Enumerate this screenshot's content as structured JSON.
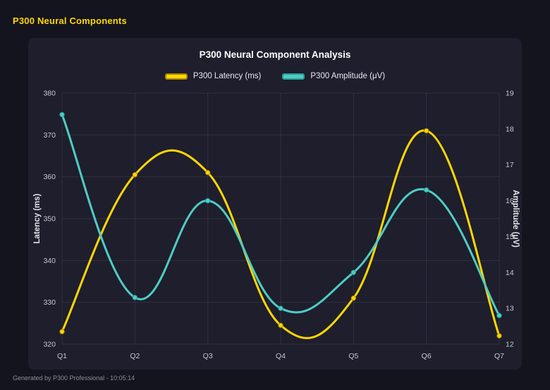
{
  "page": {
    "header_title": "P300 Neural Components",
    "footer": "Generated by P300 Professional - 10:05:14"
  },
  "colors": {
    "page_bg": "#14141f",
    "card_bg": "#1e1e2d",
    "header_accent": "#ffd700",
    "grid": "rgba(255,255,255,0.08)",
    "tick_text": "#c9c9d2",
    "axis_title_text": "#e2e2e8"
  },
  "chart_data": {
    "type": "line",
    "title": "P300 Neural Component Analysis",
    "categories": [
      "Q1",
      "Q2",
      "Q3",
      "Q4",
      "Q5",
      "Q6",
      "Q7"
    ],
    "series": [
      {
        "name": "P300 Latency (ms)",
        "axis": "left",
        "color": "#ffd700",
        "accent_border": "#a8860b",
        "values": [
          323,
          360.5,
          361,
          324.5,
          331,
          371,
          322
        ]
      },
      {
        "name": "P300 Amplitude (μV)",
        "axis": "right",
        "color": "#4ecdc4",
        "accent_border": "#2a9d96",
        "values": [
          18.4,
          13.3,
          16,
          13,
          14,
          16.3,
          12.8
        ]
      }
    ],
    "left_axis": {
      "label": "Latency (ms)",
      "min": 320,
      "max": 380,
      "step": 10
    },
    "right_axis": {
      "label": "Amplitude (μV)",
      "min": 12,
      "max": 19,
      "step": 1
    },
    "grid": true,
    "smooth": true,
    "legend_position": "top"
  }
}
